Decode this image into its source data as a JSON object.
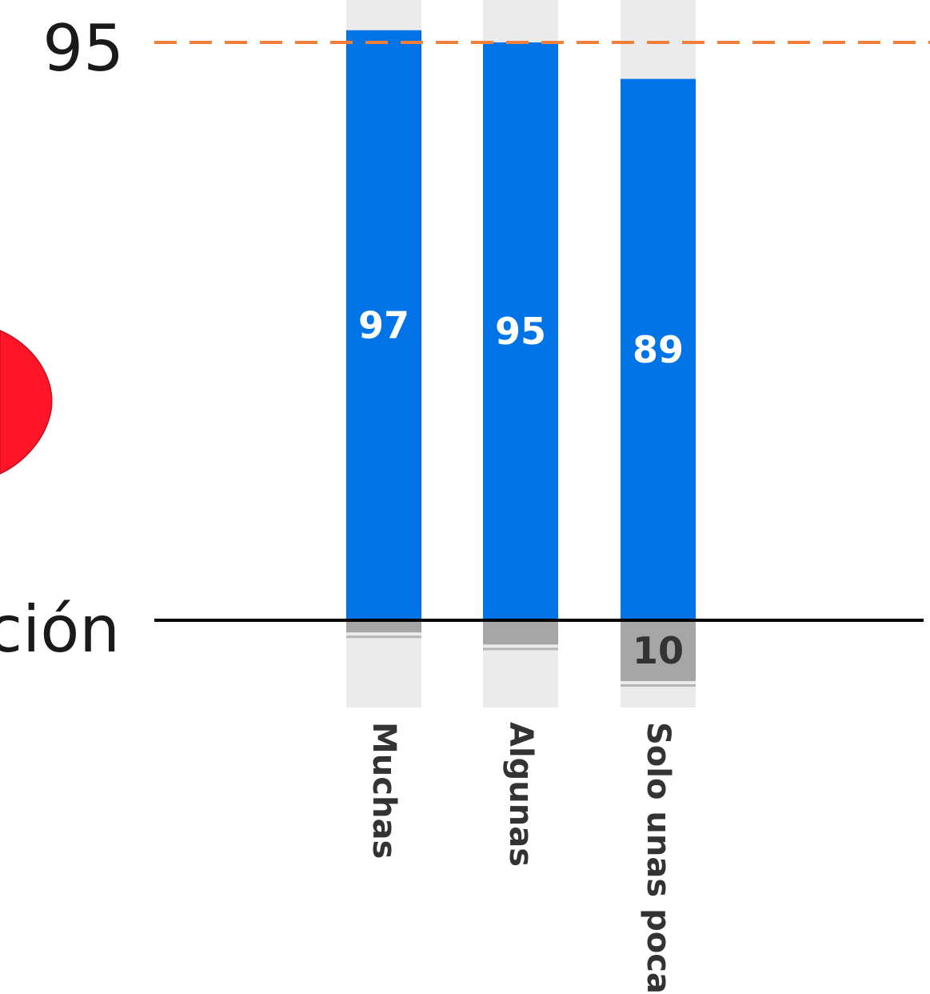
{
  "chart_data": {
    "type": "bar",
    "categories": [
      "Muchas",
      "Algunas",
      "Solo unas pocas"
    ],
    "series": [
      {
        "values": [
          97,
          95,
          89
        ],
        "color": "#0073E6"
      },
      {
        "values": [
          2,
          4,
          10
        ],
        "color": "#A6A6A6"
      }
    ],
    "data_labels_positive": [
      "97",
      "95",
      "89"
    ],
    "data_labels_negative": [
      "",
      "",
      "10"
    ],
    "reference_line": {
      "value": 95,
      "label": "95",
      "color": "#F07F3C",
      "style": "dashed"
    },
    "baseline_label_fragment": "ción",
    "ylim": [
      -15,
      100
    ],
    "track_color": "#EBEBEB",
    "accent_shape_color": "#FF1428"
  }
}
